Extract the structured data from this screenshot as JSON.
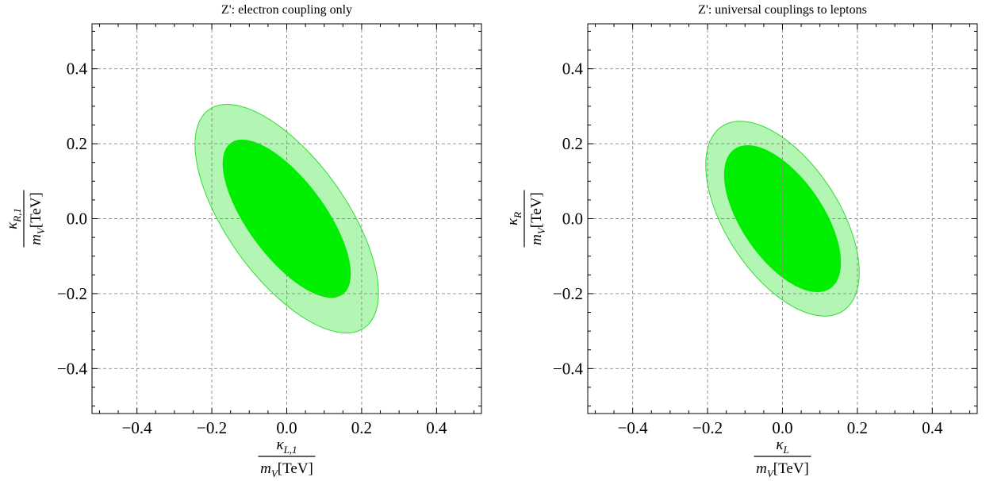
{
  "chart_data": [
    {
      "type": "contour",
      "title": "Z': electron coupling only",
      "xlabel": {
        "numerator": "κL,1",
        "denominator": "mV[TeV]"
      },
      "ylabel": {
        "numerator": "κR,1",
        "denominator": "mV[TeV]"
      },
      "xlim": [
        -0.52,
        0.52
      ],
      "ylim": [
        -0.52,
        0.52
      ],
      "xticks": [
        -0.4,
        -0.2,
        0.0,
        0.2,
        0.4
      ],
      "yticks": [
        -0.4,
        -0.2,
        0.0,
        0.2,
        0.4
      ],
      "tick_labels": [
        "−0.4",
        "−0.2",
        "0.0",
        "0.2",
        "0.4"
      ],
      "grid": true,
      "regions": [
        {
          "level": "outer",
          "fill": "#b3f5b3",
          "stroke": "#33dd33",
          "center": [
            0.0,
            0.0
          ],
          "half_span_x": 0.245,
          "half_span_y": 0.305,
          "correlation": -0.65
        },
        {
          "level": "inner",
          "fill": "#00ee00",
          "stroke": "#00ee00",
          "center": [
            0.0,
            0.0
          ],
          "half_span_x": 0.17,
          "half_span_y": 0.21,
          "correlation": -0.7
        }
      ]
    },
    {
      "type": "contour",
      "title": "Z': universal couplings to leptons",
      "xlabel": {
        "numerator": "κL",
        "denominator": "mV[TeV]"
      },
      "ylabel": {
        "numerator": "κR",
        "denominator": "mV[TeV]"
      },
      "xlim": [
        -0.52,
        0.52
      ],
      "ylim": [
        -0.52,
        0.52
      ],
      "xticks": [
        -0.4,
        -0.2,
        0.0,
        0.2,
        0.4
      ],
      "yticks": [
        -0.4,
        -0.2,
        0.0,
        0.2,
        0.4
      ],
      "tick_labels": [
        "−0.4",
        "−0.2",
        "0.0",
        "0.2",
        "0.4"
      ],
      "grid": true,
      "regions": [
        {
          "level": "outer",
          "fill": "#b3f5b3",
          "stroke": "#33dd33",
          "center": [
            0.0,
            0.0
          ],
          "half_span_x": 0.205,
          "half_span_y": 0.26,
          "correlation": -0.55
        },
        {
          "level": "inner",
          "fill": "#00ee00",
          "stroke": "#00ee00",
          "center": [
            0.0,
            0.0
          ],
          "half_span_x": 0.155,
          "half_span_y": 0.195,
          "correlation": -0.6
        }
      ]
    }
  ]
}
